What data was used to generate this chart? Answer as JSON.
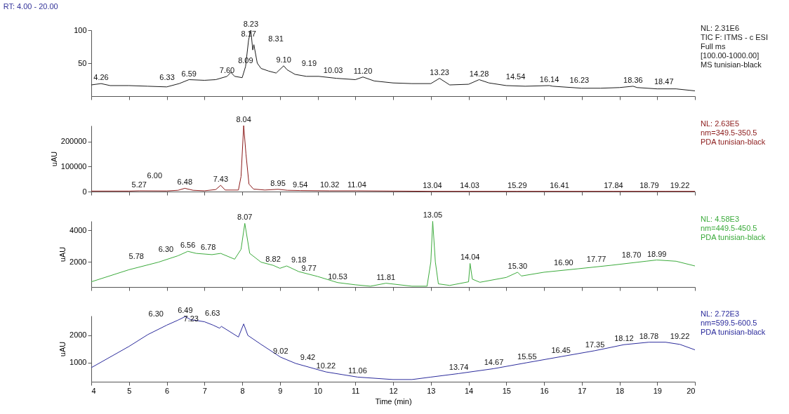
{
  "chart_data": [
    {
      "type": "line",
      "title": "RT: 4.00 - 20.00",
      "xlim": [
        4,
        20
      ],
      "xticks": [
        4,
        5,
        6,
        7,
        8,
        9,
        10,
        11,
        12,
        13,
        14,
        15,
        16,
        17,
        18,
        19,
        20
      ],
      "ylim": [
        0,
        100
      ],
      "yticks": [
        50,
        100
      ],
      "tick_labels": "y",
      "series": [
        {
          "color": "#1a1a1a",
          "x": [
            4.0,
            4.26,
            4.5,
            5.0,
            5.5,
            6.0,
            6.33,
            6.59,
            7.0,
            7.3,
            7.6,
            7.7,
            7.8,
            8.0,
            8.09,
            8.17,
            8.23,
            8.28,
            8.31,
            8.4,
            8.5,
            8.7,
            8.9,
            9.1,
            9.19,
            9.4,
            9.7,
            10.03,
            10.5,
            11.0,
            11.2,
            11.5,
            12.0,
            12.5,
            13.0,
            13.23,
            13.5,
            14.0,
            14.28,
            14.54,
            15.0,
            15.5,
            16.14,
            16.23,
            17.0,
            17.5,
            18.0,
            18.36,
            18.47,
            19.0,
            19.5,
            20.0
          ],
          "values": [
            17,
            19,
            16,
            16,
            15,
            14,
            19,
            25,
            24,
            25,
            30,
            36,
            30,
            28,
            45,
            85,
            100,
            70,
            78,
            50,
            42,
            38,
            35,
            46,
            40,
            33,
            30,
            30,
            27,
            25,
            29,
            23,
            20,
            19,
            19,
            27,
            17,
            18,
            25,
            20,
            16,
            15,
            16,
            15,
            12,
            12,
            13,
            15,
            13,
            11,
            11,
            8
          ]
        }
      ],
      "annotations": [
        "NL: 2.31E6",
        "TIC F: ITMS - c ESI",
        "Full ms",
        "[100.00-1000.00]",
        "MS tunisian-black",
        {
          "text": "4.26",
          "x": 4.26,
          "y": 19
        },
        {
          "text": "6.33",
          "x": 6.33,
          "y": 19
        },
        {
          "text": "6.59",
          "x": 6.59,
          "y": 25
        },
        {
          "text": "7.60",
          "x": 7.6,
          "y": 30
        },
        {
          "text": "8.09",
          "x": 8.09,
          "y": 45
        },
        {
          "text": "8.17",
          "x": 8.17,
          "y": 85
        },
        {
          "text": "8.23",
          "x": 8.23,
          "y": 100
        },
        {
          "text": "8.31",
          "x": 8.31,
          "y": 78
        },
        {
          "text": "9.10",
          "x": 9.1,
          "y": 46
        },
        {
          "text": "9.19",
          "x": 9.19,
          "y": 40
        },
        {
          "text": "10.03",
          "x": 10.03,
          "y": 30
        },
        {
          "text": "11.20",
          "x": 11.2,
          "y": 29
        },
        {
          "text": "13.23",
          "x": 13.23,
          "y": 27
        },
        {
          "text": "14.28",
          "x": 14.28,
          "y": 25
        },
        {
          "text": "14.54",
          "x": 14.54,
          "y": 20
        },
        {
          "text": "16.14",
          "x": 16.14,
          "y": 16
        },
        {
          "text": "16.23",
          "x": 16.23,
          "y": 15
        },
        {
          "text": "18.36",
          "x": 18.36,
          "y": 15
        },
        {
          "text": "18.47",
          "x": 18.47,
          "y": 13
        }
      ]
    },
    {
      "type": "line",
      "ylabel": "uAU",
      "xlim": [
        4,
        20
      ],
      "xticks": [
        4,
        5,
        6,
        7,
        8,
        9,
        10,
        11,
        12,
        13,
        14,
        15,
        16,
        17,
        18,
        19,
        20
      ],
      "ylim": [
        0,
        263000
      ],
      "yticks": [
        0,
        100000,
        200000
      ],
      "tick_labels": "y",
      "series": [
        {
          "color": "#8b1a1a",
          "x": [
            4.0,
            5.0,
            5.27,
            6.0,
            6.3,
            6.48,
            6.7,
            7.0,
            7.3,
            7.43,
            7.55,
            7.9,
            7.97,
            8.04,
            8.1,
            8.18,
            8.3,
            8.6,
            8.95,
            9.2,
            9.54,
            10.32,
            11.04,
            13.04,
            14.03,
            15.29,
            16.41,
            17.84,
            18.79,
            19.22,
            20.0
          ],
          "values": [
            2000,
            2000,
            3000,
            2500,
            5000,
            13000,
            5000,
            3000,
            8000,
            25000,
            6000,
            6000,
            60000,
            263000,
            150000,
            30000,
            10000,
            6000,
            9000,
            5000,
            4000,
            3000,
            3000,
            1000,
            1000,
            1000,
            1000,
            1000,
            1000,
            1000,
            1000
          ]
        }
      ],
      "annotations": [
        "NL: 2.63E5",
        "nm=349.5-350.5",
        "PDA tunisian-black",
        {
          "text": "5.27",
          "x": 5.27,
          "y": 3000
        },
        {
          "text": "6.00",
          "x": 6.0,
          "y": 2500
        },
        {
          "text": "6.48",
          "x": 6.48,
          "y": 13000
        },
        {
          "text": "7.43",
          "x": 7.43,
          "y": 25000
        },
        {
          "text": "8.04",
          "x": 8.04,
          "y": 263000
        },
        {
          "text": "8.95",
          "x": 8.95,
          "y": 9000
        },
        {
          "text": "9.54",
          "x": 9.54,
          "y": 4000
        },
        {
          "text": "10.32",
          "x": 10.32,
          "y": 3000
        },
        {
          "text": "11.04",
          "x": 11.04,
          "y": 3000
        },
        {
          "text": "13.04",
          "x": 13.04,
          "y": 1000
        },
        {
          "text": "14.03",
          "x": 14.03,
          "y": 1000
        },
        {
          "text": "15.29",
          "x": 15.29,
          "y": 1000
        },
        {
          "text": "16.41",
          "x": 16.41,
          "y": 1000
        },
        {
          "text": "17.84",
          "x": 17.84,
          "y": 1000
        },
        {
          "text": "18.79",
          "x": 18.79,
          "y": 1000
        },
        {
          "text": "19.22",
          "x": 19.22,
          "y": 1000
        }
      ]
    },
    {
      "type": "line",
      "ylabel": "uAU",
      "xlim": [
        4,
        20
      ],
      "xticks": [
        4,
        5,
        6,
        7,
        8,
        9,
        10,
        11,
        12,
        13,
        14,
        15,
        16,
        17,
        18,
        19,
        20
      ],
      "ylim": [
        400,
        4600
      ],
      "yticks": [
        2000,
        4000
      ],
      "tick_labels": "y",
      "series": [
        {
          "color": "#3cab3c",
          "x": [
            4.0,
            5.0,
            5.78,
            6.3,
            6.56,
            6.78,
            7.2,
            7.43,
            7.8,
            7.97,
            8.07,
            8.2,
            8.5,
            8.82,
            9.0,
            9.18,
            9.5,
            10.0,
            10.53,
            11.0,
            11.4,
            11.81,
            12.5,
            12.9,
            13.0,
            13.05,
            13.12,
            13.2,
            13.5,
            14.0,
            14.04,
            14.1,
            14.3,
            15.0,
            15.3,
            15.4,
            16.0,
            16.9,
            17.77,
            18.7,
            18.99,
            19.5,
            20.0
          ],
          "values": [
            730,
            1500,
            1980,
            2390,
            2670,
            2540,
            2460,
            2540,
            2170,
            2800,
            4450,
            2540,
            1980,
            1780,
            1590,
            1740,
            1380,
            1070,
            680,
            540,
            450,
            640,
            450,
            450,
            2000,
            4580,
            2000,
            600,
            500,
            730,
            1900,
            900,
            700,
            1010,
            1340,
            1100,
            1340,
            1560,
            1780,
            2040,
            2120,
            2040,
            1740
          ]
        }
      ],
      "annotations": [
        "NL: 4.58E3",
        "nm=449.5-450.5",
        "PDA tunisian-black",
        {
          "text": "5.78",
          "x": 5.78,
          "y": 1980
        },
        {
          "text": "6.30",
          "x": 6.3,
          "y": 2390
        },
        {
          "text": "6.56",
          "x": 6.56,
          "y": 2670
        },
        {
          "text": "6.78",
          "x": 6.78,
          "y": 2540
        },
        {
          "text": "8.07",
          "x": 8.07,
          "y": 4450
        },
        {
          "text": "8.82",
          "x": 8.82,
          "y": 1780
        },
        {
          "text": "9.18",
          "x": 9.18,
          "y": 1740
        },
        {
          "text": "9.77",
          "x": 9.77,
          "y": 1200
        },
        {
          "text": "10.53",
          "x": 10.53,
          "y": 680
        },
        {
          "text": "11.81",
          "x": 11.81,
          "y": 640
        },
        {
          "text": "13.05",
          "x": 13.05,
          "y": 4580
        },
        {
          "text": "14.04",
          "x": 14.04,
          "y": 1900
        },
        {
          "text": "15.30",
          "x": 15.3,
          "y": 1340
        },
        {
          "text": "16.90",
          "x": 16.9,
          "y": 1560
        },
        {
          "text": "17.77",
          "x": 17.77,
          "y": 1780
        },
        {
          "text": "18.70",
          "x": 18.7,
          "y": 2040
        },
        {
          "text": "18.99",
          "x": 18.99,
          "y": 2120
        }
      ]
    },
    {
      "type": "line",
      "ylabel": "uAU",
      "xlabel": "Time (min)",
      "xlim": [
        4,
        20
      ],
      "xticks": [
        4,
        5,
        6,
        7,
        8,
        9,
        10,
        11,
        12,
        13,
        14,
        15,
        16,
        17,
        18,
        19,
        20
      ],
      "ylim": [
        300,
        2720
      ],
      "yticks": [
        1000,
        2000
      ],
      "series": [
        {
          "color": "#2b2b9c",
          "x": [
            4.0,
            5.0,
            5.5,
            6.0,
            6.3,
            6.49,
            6.63,
            7.0,
            7.23,
            7.4,
            7.45,
            7.9,
            8.04,
            8.15,
            8.5,
            9.02,
            9.42,
            10.22,
            11.06,
            12.0,
            12.5,
            13.0,
            13.74,
            14.67,
            15.55,
            16.45,
            17.35,
            18.12,
            18.78,
            19.22,
            19.6,
            20.0
          ],
          "values": [
            815,
            1595,
            2030,
            2375,
            2560,
            2690,
            2580,
            2500,
            2375,
            2265,
            2330,
            1940,
            2420,
            2000,
            1670,
            1200,
            970,
            660,
            470,
            380,
            380,
            470,
            600,
            780,
            1000,
            1220,
            1440,
            1660,
            1750,
            1750,
            1670,
            1470
          ]
        }
      ],
      "annotations": [
        "NL: 2.72E3",
        "nm=599.5-600.5",
        "PDA tunisian-black",
        {
          "text": "6.30",
          "x": 6.3,
          "y": 2560
        },
        {
          "text": "6.49",
          "x": 6.49,
          "y": 2690
        },
        {
          "text": "6.63",
          "x": 6.63,
          "y": 2580
        },
        {
          "text": "7.23",
          "x": 7.23,
          "y": 2375
        },
        {
          "text": "9.02",
          "x": 9.02,
          "y": 1200
        },
        {
          "text": "9.42",
          "x": 9.42,
          "y": 970
        },
        {
          "text": "10.22",
          "x": 10.22,
          "y": 660
        },
        {
          "text": "11.06",
          "x": 11.06,
          "y": 470
        },
        {
          "text": "13.74",
          "x": 13.74,
          "y": 600
        },
        {
          "text": "14.67",
          "x": 14.67,
          "y": 780
        },
        {
          "text": "15.55",
          "x": 15.55,
          "y": 1000
        },
        {
          "text": "16.45",
          "x": 16.45,
          "y": 1220
        },
        {
          "text": "17.35",
          "x": 17.35,
          "y": 1440
        },
        {
          "text": "18.12",
          "x": 18.12,
          "y": 1660
        },
        {
          "text": "18.78",
          "x": 18.78,
          "y": 1750
        },
        {
          "text": "19.22",
          "x": 19.22,
          "y": 1750
        }
      ]
    }
  ]
}
